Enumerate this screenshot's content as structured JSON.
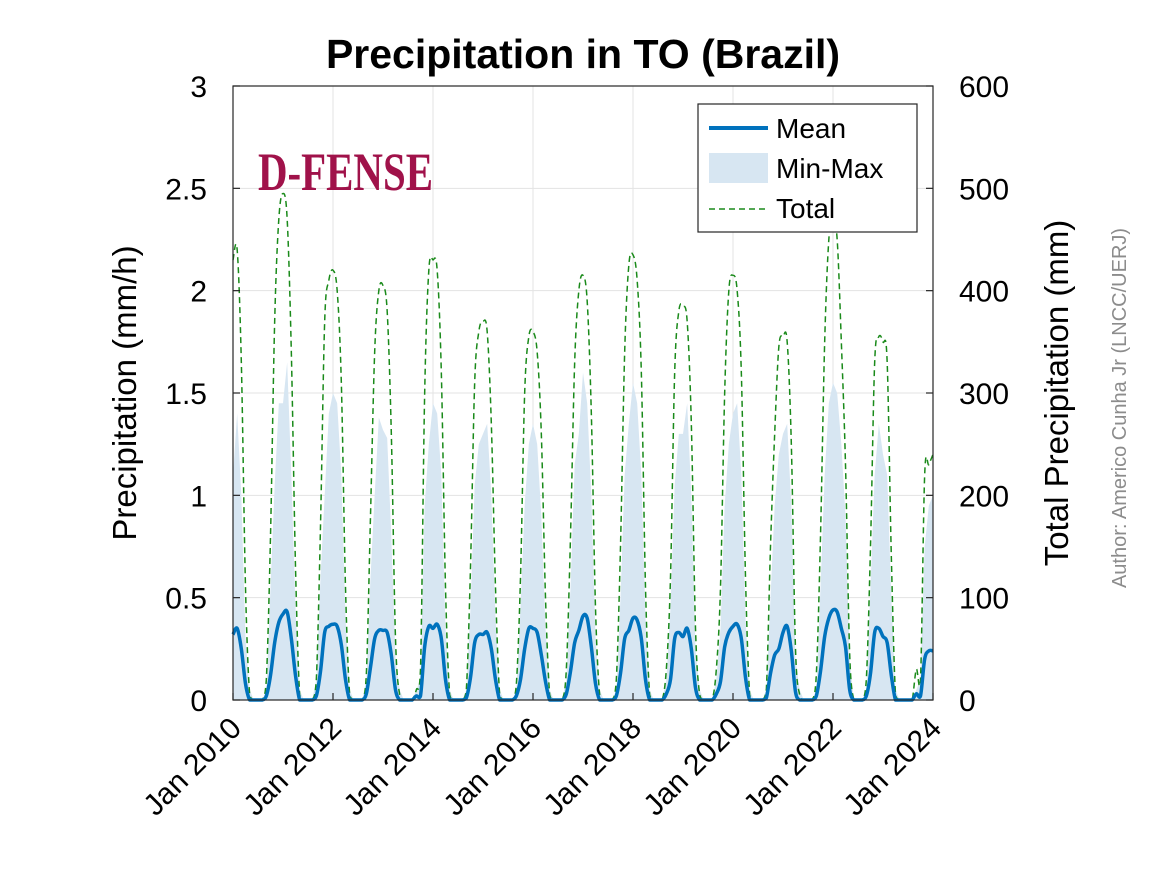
{
  "chart_data": {
    "type": "line",
    "title": "Precipitation in TO (Brazil)",
    "xlabel": "",
    "ylabel": "Precipitation (mm/h)",
    "ylabel_right": "Total Precipitation (mm)",
    "ylim": [
      0,
      3
    ],
    "ylim_right": [
      0,
      600
    ],
    "y_ticks": [
      "0",
      "0.5",
      "1",
      "1.5",
      "2",
      "2.5",
      "3"
    ],
    "y_ticks_right": [
      "0",
      "100",
      "200",
      "300",
      "400",
      "500",
      "600"
    ],
    "x_range": [
      "2010-01",
      "2024-01"
    ],
    "x_tick_labels": [
      "Jan 2010",
      "Jan 2012",
      "Jan 2014",
      "Jan 2016",
      "Jan 2018",
      "Jan 2020",
      "Jan 2022",
      "Jan 2024"
    ],
    "grid": true,
    "legend": {
      "placement": "top-right",
      "entries": [
        "Mean",
        "Min-Max",
        "Total"
      ]
    },
    "colors": {
      "mean": "#0072bd",
      "minmax": "#d7e6f2",
      "total": "#1a8a1a"
    },
    "x": [
      "2010-01",
      "2010-02",
      "2010-03",
      "2010-04",
      "2010-05",
      "2010-06",
      "2010-07",
      "2010-08",
      "2010-09",
      "2010-10",
      "2010-11",
      "2010-12",
      "2011-01",
      "2011-02",
      "2011-03",
      "2011-04",
      "2011-05",
      "2011-06",
      "2011-07",
      "2011-08",
      "2011-09",
      "2011-10",
      "2011-11",
      "2011-12",
      "2012-01",
      "2012-02",
      "2012-03",
      "2012-04",
      "2012-05",
      "2012-06",
      "2012-07",
      "2012-08",
      "2012-09",
      "2012-10",
      "2012-11",
      "2012-12",
      "2013-01",
      "2013-02",
      "2013-03",
      "2013-04",
      "2013-05",
      "2013-06",
      "2013-07",
      "2013-08",
      "2013-09",
      "2013-10",
      "2013-11",
      "2013-12",
      "2014-01",
      "2014-02",
      "2014-03",
      "2014-04",
      "2014-05",
      "2014-06",
      "2014-07",
      "2014-08",
      "2014-09",
      "2014-10",
      "2014-11",
      "2014-12",
      "2015-01",
      "2015-02",
      "2015-03",
      "2015-04",
      "2015-05",
      "2015-06",
      "2015-07",
      "2015-08",
      "2015-09",
      "2015-10",
      "2015-11",
      "2015-12",
      "2016-01",
      "2016-02",
      "2016-03",
      "2016-04",
      "2016-05",
      "2016-06",
      "2016-07",
      "2016-08",
      "2016-09",
      "2016-10",
      "2016-11",
      "2016-12",
      "2017-01",
      "2017-02",
      "2017-03",
      "2017-04",
      "2017-05",
      "2017-06",
      "2017-07",
      "2017-08",
      "2017-09",
      "2017-10",
      "2017-11",
      "2017-12",
      "2018-01",
      "2018-02",
      "2018-03",
      "2018-04",
      "2018-05",
      "2018-06",
      "2018-07",
      "2018-08",
      "2018-09",
      "2018-10",
      "2018-11",
      "2018-12",
      "2019-01",
      "2019-02",
      "2019-03",
      "2019-04",
      "2019-05",
      "2019-06",
      "2019-07",
      "2019-08",
      "2019-09",
      "2019-10",
      "2019-11",
      "2019-12",
      "2020-01",
      "2020-02",
      "2020-03",
      "2020-04",
      "2020-05",
      "2020-06",
      "2020-07",
      "2020-08",
      "2020-09",
      "2020-10",
      "2020-11",
      "2020-12",
      "2021-01",
      "2021-02",
      "2021-03",
      "2021-04",
      "2021-05",
      "2021-06",
      "2021-07",
      "2021-08",
      "2021-09",
      "2021-10",
      "2021-11",
      "2021-12",
      "2022-01",
      "2022-02",
      "2022-03",
      "2022-04",
      "2022-05",
      "2022-06",
      "2022-07",
      "2022-08",
      "2022-09",
      "2022-10",
      "2022-11",
      "2022-12",
      "2023-01",
      "2023-02",
      "2023-03",
      "2023-04",
      "2023-05",
      "2023-06",
      "2023-07",
      "2023-08",
      "2023-09",
      "2023-10",
      "2023-11",
      "2023-12",
      "2024-01"
    ],
    "series": [
      {
        "name": "Mean",
        "axis": "left",
        "values": [
          0.32,
          0.35,
          0.25,
          0.08,
          0.0,
          0.0,
          0.0,
          0.0,
          0.02,
          0.12,
          0.28,
          0.38,
          0.42,
          0.43,
          0.3,
          0.12,
          0.0,
          0.0,
          0.0,
          0.0,
          0.02,
          0.14,
          0.33,
          0.36,
          0.37,
          0.36,
          0.27,
          0.1,
          0.0,
          0.0,
          0.0,
          0.0,
          0.03,
          0.16,
          0.3,
          0.34,
          0.34,
          0.33,
          0.22,
          0.05,
          0.0,
          0.0,
          0.0,
          0.0,
          0.02,
          0.02,
          0.26,
          0.36,
          0.35,
          0.37,
          0.3,
          0.1,
          0.0,
          0.0,
          0.0,
          0.0,
          0.01,
          0.11,
          0.28,
          0.32,
          0.32,
          0.33,
          0.25,
          0.1,
          0.0,
          0.0,
          0.0,
          0.0,
          0.02,
          0.1,
          0.25,
          0.35,
          0.35,
          0.33,
          0.22,
          0.09,
          0.0,
          0.0,
          0.0,
          0.0,
          0.03,
          0.14,
          0.28,
          0.34,
          0.41,
          0.4,
          0.26,
          0.08,
          0.0,
          0.0,
          0.0,
          0.0,
          0.02,
          0.13,
          0.3,
          0.34,
          0.4,
          0.39,
          0.3,
          0.1,
          0.0,
          0.0,
          0.0,
          0.0,
          0.03,
          0.1,
          0.3,
          0.33,
          0.31,
          0.35,
          0.25,
          0.06,
          0.0,
          0.0,
          0.0,
          0.0,
          0.03,
          0.09,
          0.26,
          0.33,
          0.36,
          0.37,
          0.3,
          0.11,
          0.0,
          0.0,
          0.0,
          0.0,
          0.01,
          0.13,
          0.22,
          0.25,
          0.33,
          0.36,
          0.24,
          0.04,
          0.0,
          0.0,
          0.0,
          0.0,
          0.02,
          0.14,
          0.31,
          0.4,
          0.44,
          0.43,
          0.35,
          0.26,
          0.05,
          0.0,
          0.0,
          0.0,
          0.02,
          0.13,
          0.33,
          0.35,
          0.31,
          0.28,
          0.12,
          0.0,
          0.0,
          0.0,
          0.0,
          0.0,
          0.03,
          0.02,
          0.2,
          0.24,
          0.24
        ]
      },
      {
        "name": "Min-Max",
        "axis": "left",
        "min": 0,
        "values": [
          1.1,
          1.4,
          1.0,
          0.3,
          0.05,
          0.0,
          0.0,
          0.0,
          0.05,
          0.55,
          1.05,
          1.45,
          1.45,
          1.65,
          1.1,
          0.45,
          0.05,
          0.0,
          0.0,
          0.0,
          0.1,
          0.6,
          1.0,
          1.4,
          1.5,
          1.45,
          1.1,
          0.4,
          0.05,
          0.0,
          0.0,
          0.0,
          0.1,
          0.6,
          1.0,
          1.38,
          1.32,
          1.28,
          0.8,
          0.2,
          0.05,
          0.0,
          0.0,
          0.0,
          0.05,
          0.1,
          0.95,
          1.25,
          1.45,
          1.4,
          1.1,
          0.35,
          0.05,
          0.0,
          0.0,
          0.0,
          0.05,
          0.45,
          1.05,
          1.25,
          1.3,
          1.35,
          1.0,
          0.4,
          0.05,
          0.0,
          0.0,
          0.0,
          0.05,
          0.45,
          0.95,
          1.25,
          1.35,
          1.25,
          0.9,
          0.35,
          0.05,
          0.0,
          0.0,
          0.0,
          0.1,
          0.55,
          1.15,
          1.3,
          1.6,
          1.45,
          1.0,
          0.3,
          0.05,
          0.0,
          0.0,
          0.0,
          0.05,
          0.5,
          1.1,
          1.35,
          1.55,
          1.45,
          1.1,
          0.4,
          0.05,
          0.0,
          0.0,
          0.0,
          0.1,
          0.45,
          1.05,
          1.3,
          1.3,
          1.45,
          1.0,
          0.25,
          0.05,
          0.0,
          0.0,
          0.0,
          0.1,
          0.35,
          0.95,
          1.25,
          1.4,
          1.45,
          1.1,
          0.4,
          0.05,
          0.0,
          0.0,
          0.0,
          0.05,
          0.5,
          0.95,
          1.2,
          1.3,
          1.35,
          0.95,
          0.2,
          0.05,
          0.0,
          0.0,
          0.0,
          0.05,
          0.55,
          1.1,
          1.45,
          1.55,
          1.5,
          1.25,
          0.9,
          0.2,
          0.0,
          0.0,
          0.0,
          0.05,
          0.55,
          1.1,
          1.35,
          1.2,
          1.1,
          0.5,
          0.05,
          0.0,
          0.0,
          0.0,
          0.0,
          0.05,
          0.1,
          0.75,
          0.95,
          1.0
        ]
      },
      {
        "name": "Total",
        "axis": "right",
        "values": [
          430,
          440,
          330,
          110,
          5,
          0,
          0,
          0,
          20,
          160,
          370,
          470,
          495,
          470,
          340,
          130,
          5,
          0,
          0,
          0,
          20,
          170,
          370,
          410,
          420,
          400,
          310,
          110,
          5,
          0,
          0,
          0,
          25,
          180,
          340,
          400,
          405,
          380,
          260,
          60,
          5,
          0,
          0,
          0,
          10,
          30,
          300,
          420,
          430,
          420,
          320,
          110,
          5,
          0,
          0,
          0,
          10,
          130,
          310,
          360,
          370,
          360,
          270,
          110,
          5,
          0,
          0,
          0,
          15,
          120,
          300,
          355,
          360,
          340,
          260,
          100,
          5,
          0,
          0,
          0,
          30,
          160,
          330,
          400,
          415,
          390,
          280,
          90,
          5,
          0,
          0,
          0,
          20,
          150,
          340,
          425,
          435,
          410,
          320,
          110,
          5,
          0,
          0,
          0,
          30,
          120,
          320,
          380,
          385,
          370,
          270,
          70,
          5,
          0,
          0,
          0,
          30,
          110,
          300,
          400,
          415,
          400,
          320,
          120,
          5,
          0,
          0,
          0,
          10,
          150,
          260,
          345,
          355,
          350,
          250,
          50,
          5,
          0,
          0,
          0,
          25,
          160,
          350,
          450,
          470,
          450,
          350,
          230,
          45,
          0,
          0,
          0,
          20,
          150,
          330,
          355,
          350,
          330,
          140,
          5,
          0,
          0,
          0,
          0,
          30,
          20,
          220,
          230,
          240
        ]
      }
    ]
  },
  "logo": {
    "text": "D-FENSE"
  },
  "author": "Author: Americo Cunha Jr (LNCC/UERJ)"
}
